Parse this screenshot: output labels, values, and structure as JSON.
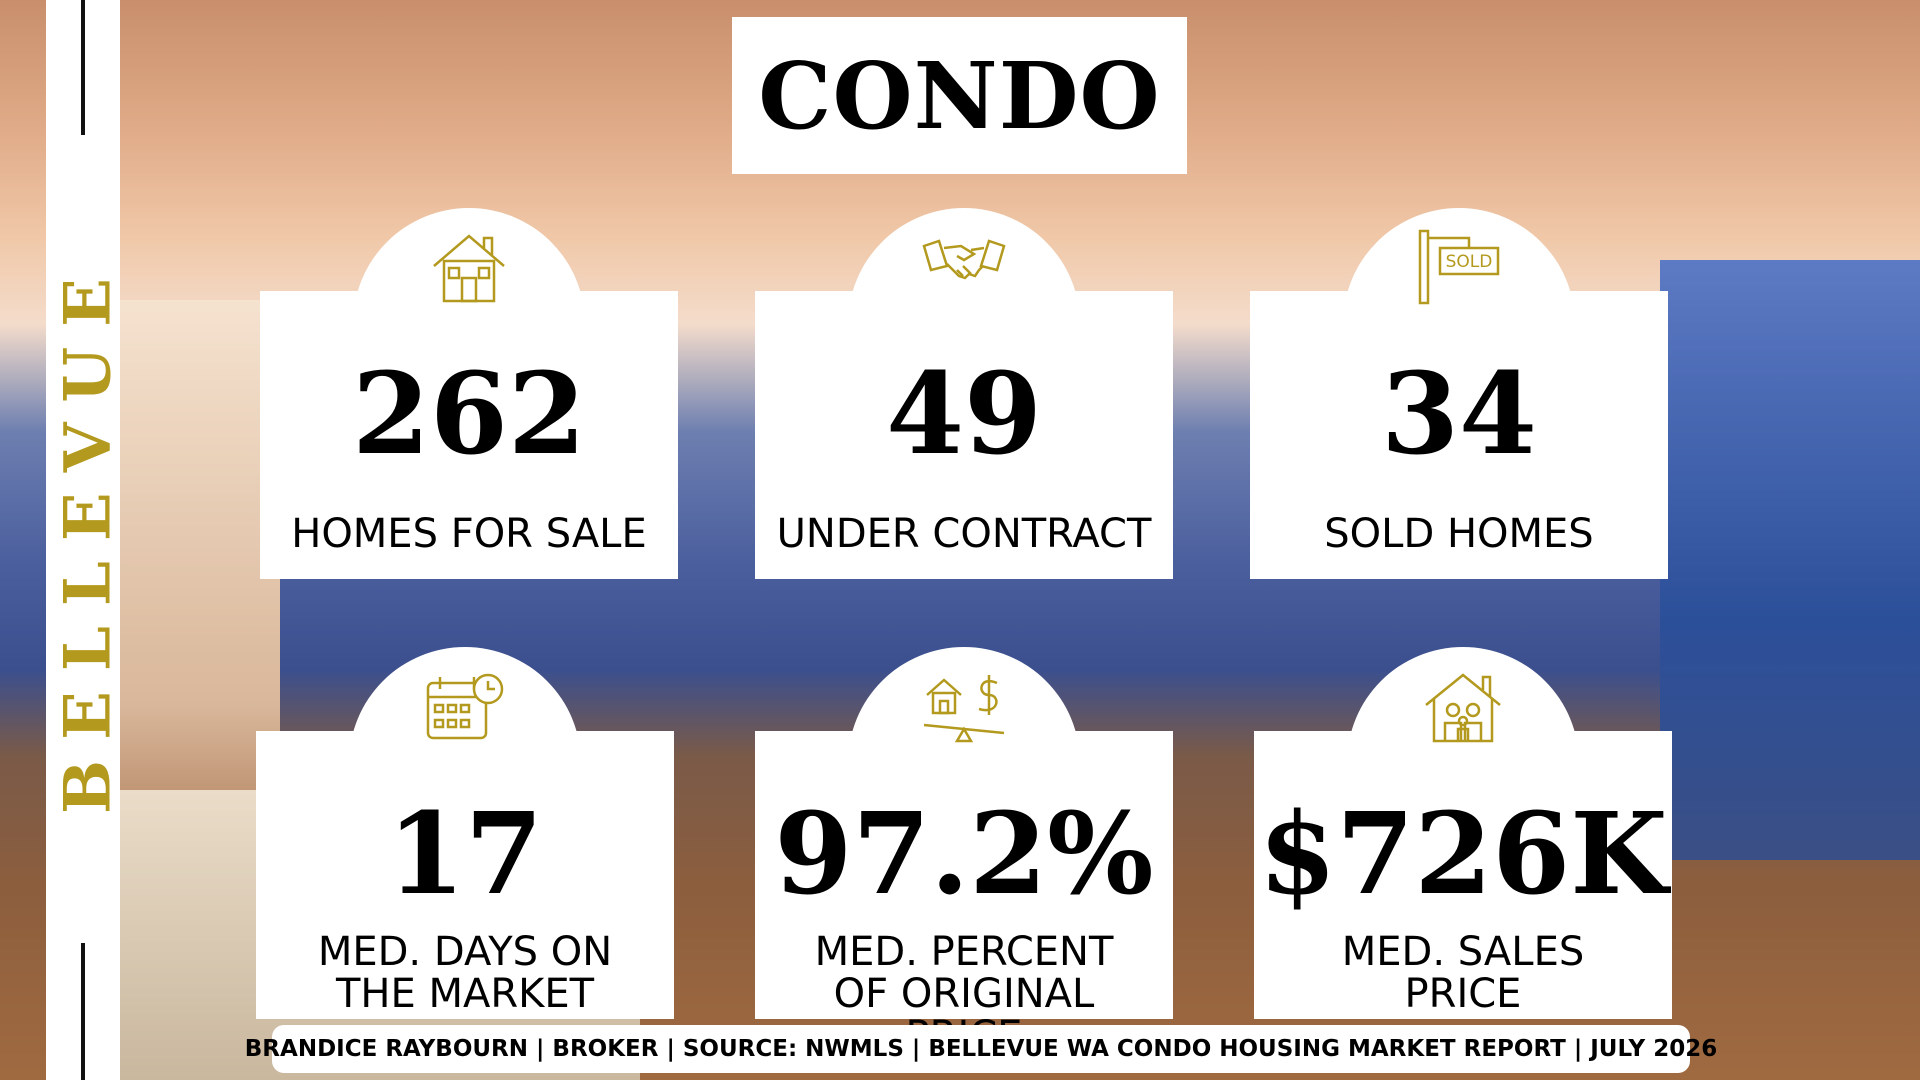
{
  "header": {
    "title": "CONDO",
    "side_label": "BELLEVUE"
  },
  "cards": [
    {
      "value": "262",
      "label": "HOMES FOR SALE"
    },
    {
      "value": "49",
      "label": "UNDER CONTRACT"
    },
    {
      "value": "34",
      "label": "SOLD HOMES"
    },
    {
      "value": "17",
      "label": "MED. DAYS ON THE MARKET"
    },
    {
      "value": "97.2%",
      "label": "MED. PERCENT OF ORIGINAL PRICE"
    },
    {
      "value": "$726K",
      "label": "MED. SALES PRICE"
    }
  ],
  "icons": {
    "sold_sign": "SOLD"
  },
  "footer": "BRANDICE RAYBOURN | BROKER | SOURCE: NWMLS | BELLEVUE WA CONDO HOUSING MARKET REPORT | JULY 2026"
}
